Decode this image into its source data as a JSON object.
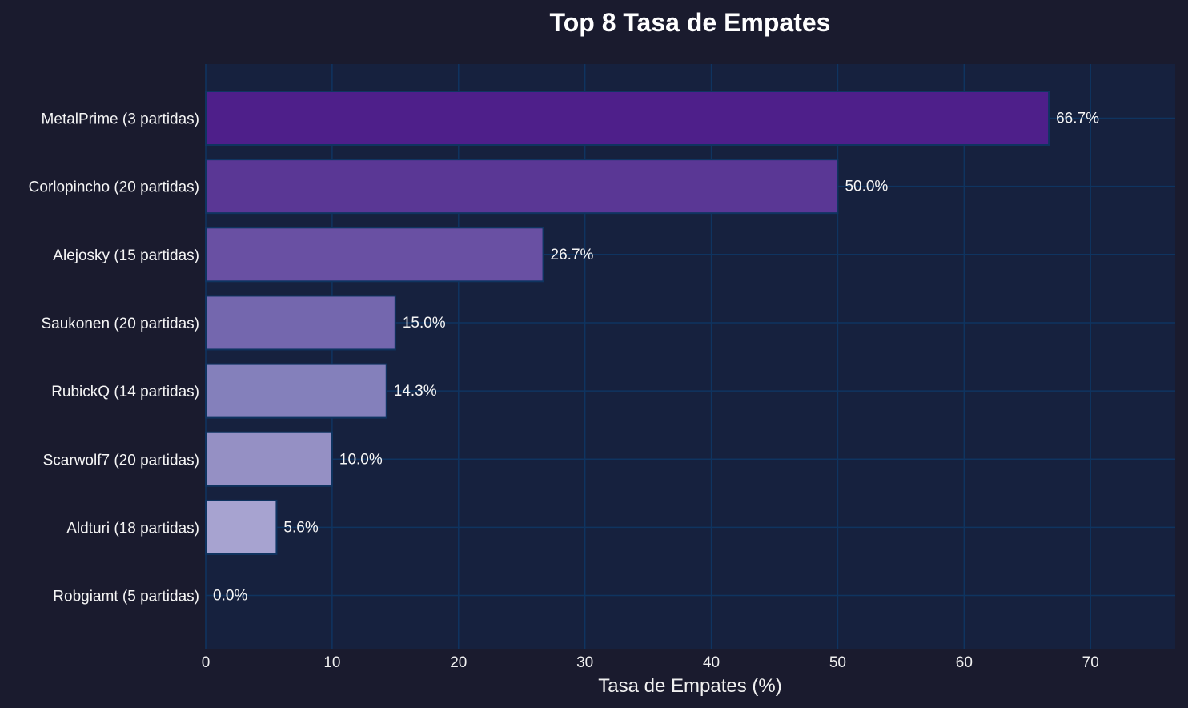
{
  "chart_data": {
    "type": "bar",
    "orientation": "horizontal",
    "title": "Top 8 Tasa de Empates",
    "xlabel": "Tasa de Empates (%)",
    "ylabel": "",
    "xlim": [
      0,
      76.7
    ],
    "xticks": [
      0,
      10,
      20,
      30,
      40,
      50,
      60,
      70
    ],
    "grid": true,
    "categories": [
      "MetalPrime (3 partidas)",
      "Corlopincho (20 partidas)",
      "Alejosky (15 partidas)",
      "Saukonen (20 partidas)",
      "RubickQ (14 partidas)",
      "Scarwolf7 (20 partidas)",
      "Aldturi (18 partidas)",
      "Robgiamt (5 partidas)"
    ],
    "values": [
      66.7,
      50.0,
      26.7,
      15.0,
      14.3,
      10.0,
      5.6,
      0.0
    ],
    "data_labels": [
      "66.7%",
      "50.0%",
      "26.7%",
      "15.0%",
      "14.3%",
      "10.0%",
      "5.6%",
      "0.0%"
    ],
    "colors": [
      "#4e1f8a",
      "#5a3795",
      "#6950a3",
      "#7467ae",
      "#8480bb",
      "#9590c4",
      "#a7a3d0",
      "#b8b5dc"
    ],
    "background": "#1a1b2e",
    "plot_background": "#16213e",
    "grid_color": "#0f3460"
  }
}
